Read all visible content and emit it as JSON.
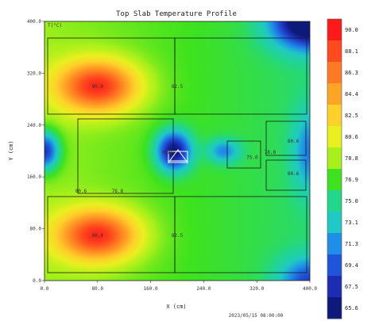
{
  "chart_data": {
    "type": "heatmap",
    "title": "Top Slab Temperature Profile",
    "xlabel": "X (cm)",
    "ylabel": "Y (cm)",
    "xlim": [
      0.0,
      400.0
    ],
    "ylim": [
      0.0,
      400.0
    ],
    "x_ticks": [
      "0.0",
      "80.0",
      "160.0",
      "240.0",
      "320.0",
      "400.0"
    ],
    "y_ticks": [
      "0.0",
      "80.0",
      "160.0",
      "240.0",
      "320.0",
      "400.0"
    ],
    "footer": "2023/05/15 08:00:00",
    "corner_label": "T(°C)",
    "colorbar": {
      "values": [
        "90.0",
        "88.1",
        "86.3",
        "84.4",
        "82.5",
        "80.6",
        "78.8",
        "76.9",
        "75.0",
        "73.1",
        "71.3",
        "69.4",
        "67.5",
        "65.6"
      ],
      "colors": [
        "#ff1a1a",
        "#ff4a1e",
        "#ff7a22",
        "#ffa526",
        "#ffd12a",
        "#e9f020",
        "#a7f01a",
        "#3ee21e",
        "#22d68c",
        "#1fc9c6",
        "#1f8ee8",
        "#1f55d8",
        "#1c2cb3",
        "#0d1a7a"
      ]
    },
    "hotspots": [
      {
        "x": 80,
        "y": 300,
        "peak": 90,
        "label": "90.0"
      },
      {
        "x": 80,
        "y": 70,
        "peak": 90,
        "label": "90.0"
      }
    ],
    "region_labels": [
      {
        "x": 200,
        "y": 300,
        "text": "82.5"
      },
      {
        "x": 200,
        "y": 70,
        "text": "82.5"
      },
      {
        "x": 110,
        "y": 138,
        "text": "78.8"
      },
      {
        "x": 55,
        "y": 138,
        "text": "80.6"
      },
      {
        "x": 340,
        "y": 198,
        "text": "78.8"
      },
      {
        "x": 375,
        "y": 215,
        "text": "80.6"
      },
      {
        "x": 375,
        "y": 165,
        "text": "80.6"
      },
      {
        "x": 313,
        "y": 190,
        "text": "75.0"
      }
    ],
    "annotations": [
      {
        "x": 185,
        "y": 198,
        "text": "HVAC"
      }
    ]
  }
}
